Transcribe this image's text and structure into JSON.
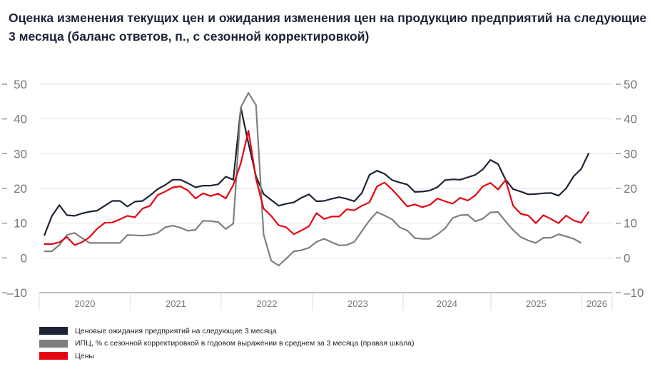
{
  "title": "Оценка изменения текущих цен и ожидания изменения цен на продукцию предприятий на следующие 3 месяца (баланс ответов, п., с сезонной корректировкой)",
  "chart_data": {
    "type": "line",
    "title": "Оценка изменения текущих цен и ожидания изменения цен на продукцию предприятий на следующие 3 месяца (баланс ответов, п., с сезонной корректировкой)",
    "x_start": "2020-01",
    "x_frequency": "monthly",
    "x_tick_labels": [
      "2020",
      "2021",
      "2022",
      "2023",
      "2024",
      "2025",
      "2026"
    ],
    "ylim": [
      -10,
      50
    ],
    "y_ticks": [
      -10,
      0,
      10,
      20,
      30,
      40,
      50
    ],
    "y_tick_labels": [
      "–10",
      "0",
      "10",
      "20",
      "30",
      "40",
      "50"
    ],
    "y2lim": [
      -10,
      50
    ],
    "grid": true,
    "legend_position": "bottom-left",
    "series": [
      {
        "name": "Ценовые ожидания предприятий на следующие 3 месяца",
        "color": "#1c2436",
        "axis": "left",
        "values": [
          6.4,
          12,
          15.2,
          12.3,
          12.1,
          12.8,
          13.3,
          13.6,
          15,
          16.4,
          16.4,
          14.8,
          16.2,
          16.4,
          18,
          19.8,
          21,
          22.5,
          22.5,
          21.5,
          20.3,
          20.8,
          20.8,
          21.2,
          23.4,
          22.5,
          43.2,
          33,
          23.5,
          18.4,
          16.7,
          15,
          15.6,
          16,
          17.3,
          18.3,
          16.3,
          16.4,
          17,
          17.5,
          17,
          16.3,
          18.7,
          23.9,
          25.1,
          24.2,
          22.4,
          21.7,
          21.1,
          19,
          19.1,
          19.4,
          20.4,
          22.4,
          22.6,
          22.5,
          23.2,
          23.9,
          25.5,
          28.2,
          27,
          22.5,
          19.8,
          19.1,
          18.3,
          18.4,
          18.6,
          18.7,
          17.9,
          20,
          23.5,
          25.6,
          30.2
        ]
      },
      {
        "name": "ИПЦ, % с сезонной корректировкой в годовом выражении в среднем за 3 месяца (правая шкала)",
        "color": "#7f7f7f",
        "axis": "right",
        "values": [
          1.9,
          1.9,
          3.7,
          6.6,
          7.2,
          5.7,
          4.3,
          4.3,
          4.3,
          4.3,
          4.3,
          6.6,
          6.5,
          6.4,
          6.6,
          7.2,
          8.8,
          9.3,
          8.7,
          7.8,
          8.1,
          10.7,
          10.6,
          10.3,
          8.3,
          9.9,
          43.4,
          47.5,
          44,
          6.8,
          -0.8,
          -2.2,
          -0.2,
          1.9,
          2.2,
          2.9,
          4.6,
          5.5,
          4.5,
          3.6,
          3.7,
          4.6,
          7.7,
          10.8,
          13.2,
          12.2,
          11.1,
          8.8,
          7.9,
          5.7,
          5.5,
          5.5,
          6.8,
          8.5,
          11.5,
          12.3,
          12.4,
          10.5,
          11.3,
          13.1,
          13.2,
          10.5,
          8,
          6,
          5,
          4.3,
          5.8,
          5.8,
          6.8,
          6.2,
          5.5,
          4.3
        ]
      },
      {
        "name": "Цены",
        "color": "#e30613",
        "axis": "left",
        "values": [
          4,
          4,
          4.5,
          6,
          3.7,
          4.5,
          6,
          8.4,
          10.1,
          10.2,
          11.1,
          12.1,
          11.7,
          14.2,
          15,
          18.1,
          19.1,
          20.3,
          20.6,
          19.4,
          17.1,
          18.6,
          17.8,
          18.5,
          17.1,
          21,
          27.3,
          36.6,
          22.8,
          14.2,
          12.1,
          9.4,
          8.8,
          6.8,
          7.9,
          9.1,
          12.9,
          11.2,
          11.9,
          11.9,
          14,
          13.7,
          15,
          16,
          20.6,
          21.7,
          19.7,
          17.3,
          14.8,
          15.4,
          14.6,
          15.3,
          17.1,
          16.3,
          15.6,
          17.3,
          16.5,
          18,
          20.6,
          21.6,
          19.7,
          22.4,
          15,
          12.7,
          12.2,
          10,
          12.3,
          11.2,
          10,
          12.2,
          10.8,
          10.1,
          13.3
        ]
      }
    ]
  }
}
